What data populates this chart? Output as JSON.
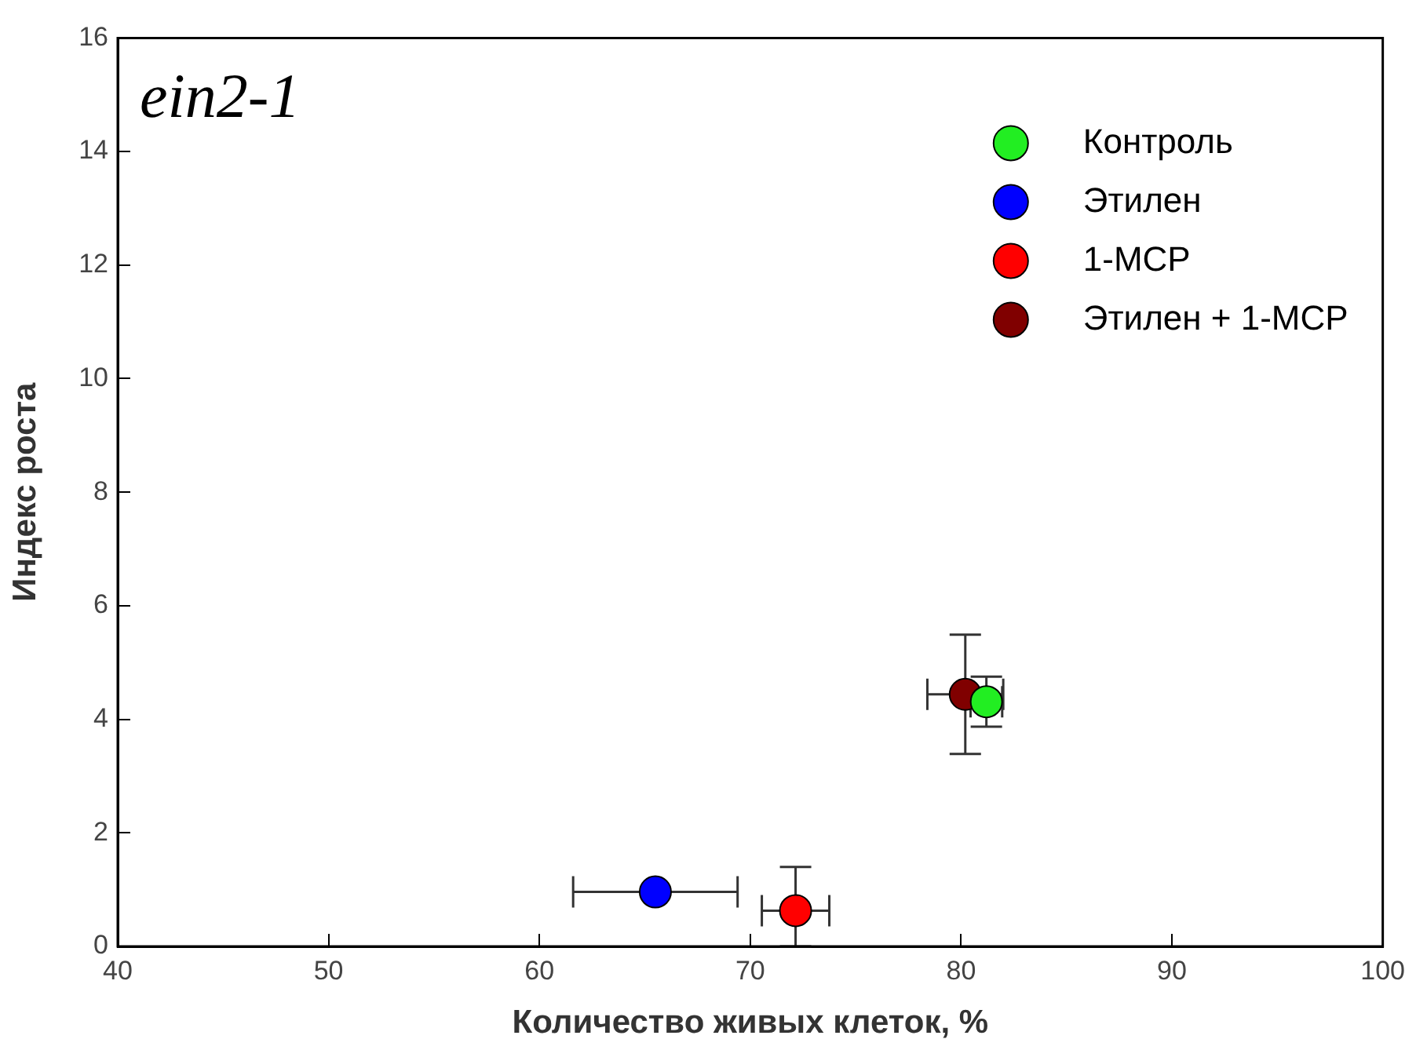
{
  "chart_data": {
    "type": "scatter",
    "title": "ein2-1",
    "xlabel": "Количество живых клеток, %",
    "ylabel": "Индекс роста",
    "xlim": [
      40,
      100
    ],
    "xticks": [
      40,
      50,
      60,
      70,
      80,
      90,
      100
    ],
    "ylim": [
      0,
      16
    ],
    "yticks": [
      0,
      2,
      4,
      6,
      8,
      10,
      12,
      14,
      16
    ],
    "grid": false,
    "legend": "top right",
    "marker": "circle",
    "series": [
      {
        "name": "Контроль",
        "color": "#22ee22",
        "x": [
          81.2
        ],
        "values": [
          4.31
        ],
        "errors": [
          0.44
        ],
        "xerrors": [
          0.75
        ]
      },
      {
        "name": "Этилен",
        "color": "#0000ff",
        "x": [
          65.5
        ],
        "values": [
          0.96
        ],
        "errors": [
          null
        ],
        "xerrors": [
          3.9
        ]
      },
      {
        "name": "1-MCP",
        "color": "#ff0000",
        "x": [
          72.15
        ],
        "values": [
          0.63
        ],
        "errors": [
          [
            0,
            1.4
          ]
        ],
        "xerrors": [
          1.6
        ]
      },
      {
        "name": "Этилен + 1-MCP",
        "color": "#800000",
        "x": [
          80.2
        ],
        "values": [
          4.44
        ],
        "errors": [
          1.05
        ],
        "xerrors": [
          1.8
        ]
      }
    ]
  }
}
